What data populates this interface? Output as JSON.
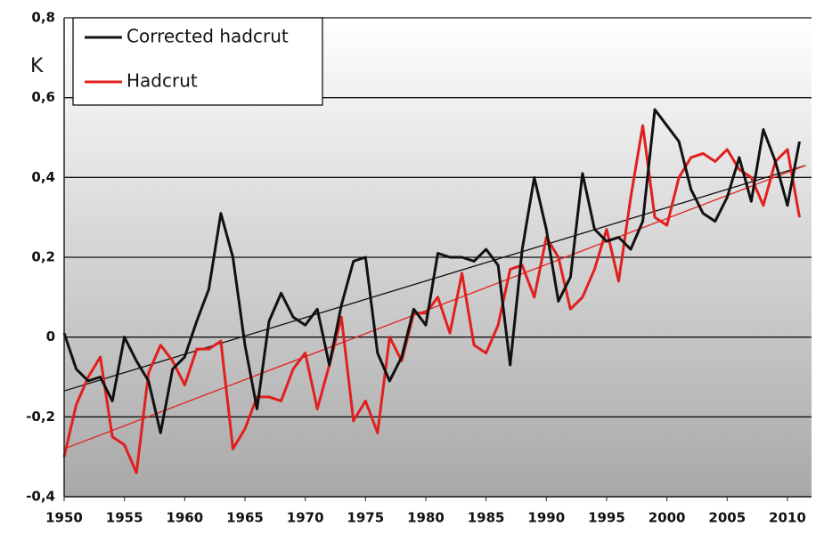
{
  "chart_data": {
    "type": "line",
    "y_label": "K",
    "x": [
      1950,
      1951,
      1952,
      1953,
      1954,
      1955,
      1956,
      1957,
      1958,
      1959,
      1960,
      1961,
      1962,
      1963,
      1964,
      1965,
      1966,
      1967,
      1968,
      1969,
      1970,
      1971,
      1972,
      1973,
      1974,
      1975,
      1976,
      1977,
      1978,
      1979,
      1980,
      1981,
      1982,
      1983,
      1984,
      1985,
      1986,
      1987,
      1988,
      1989,
      1990,
      1991,
      1992,
      1993,
      1994,
      1995,
      1996,
      1997,
      1998,
      1999,
      2000,
      2001,
      2002,
      2003,
      2004,
      2005,
      2006,
      2007,
      2008,
      2009,
      2010,
      2011
    ],
    "series": [
      {
        "name": "Corrected hadcrut",
        "color": "#111111",
        "values": [
          0.01,
          -0.08,
          -0.11,
          -0.1,
          -0.16,
          0.0,
          -0.06,
          -0.11,
          -0.24,
          -0.08,
          -0.05,
          0.04,
          0.12,
          0.31,
          0.2,
          -0.02,
          -0.18,
          0.04,
          0.11,
          0.05,
          0.03,
          0.07,
          -0.07,
          0.08,
          0.19,
          0.2,
          -0.04,
          -0.11,
          -0.05,
          0.07,
          0.03,
          0.21,
          0.2,
          0.2,
          0.19,
          0.22,
          0.18,
          -0.07,
          0.22,
          0.4,
          0.27,
          0.09,
          0.15,
          0.41,
          0.27,
          0.24,
          0.25,
          0.22,
          0.29,
          0.57,
          0.53,
          0.49,
          0.37,
          0.31,
          0.29,
          0.35,
          0.45,
          0.34,
          0.52,
          0.44,
          0.33,
          0.49
        ]
      },
      {
        "name": "Hadcrut",
        "color": "#e0201e",
        "values": [
          -0.3,
          -0.17,
          -0.1,
          -0.05,
          -0.25,
          -0.27,
          -0.34,
          -0.09,
          -0.02,
          -0.06,
          -0.12,
          -0.03,
          -0.03,
          -0.01,
          -0.28,
          -0.23,
          -0.15,
          -0.15,
          -0.16,
          -0.08,
          -0.04,
          -0.18,
          -0.07,
          0.05,
          -0.21,
          -0.16,
          -0.24,
          0.0,
          -0.06,
          0.06,
          0.06,
          0.1,
          0.01,
          0.16,
          -0.02,
          -0.04,
          0.03,
          0.17,
          0.18,
          0.1,
          0.25,
          0.2,
          0.07,
          0.1,
          0.17,
          0.27,
          0.14,
          0.35,
          0.53,
          0.3,
          0.28,
          0.4,
          0.45,
          0.46,
          0.44,
          0.47,
          0.42,
          0.4,
          0.33,
          0.44,
          0.47,
          0.3
        ]
      }
    ],
    "trend_lines": [
      {
        "color": "#111111",
        "x": [
          1950,
          2011.5
        ],
        "values": [
          -0.135,
          0.43
        ]
      },
      {
        "color": "#e0201e",
        "x": [
          1950,
          2011.5
        ],
        "values": [
          -0.28,
          0.43
        ]
      }
    ],
    "xlim": [
      1950,
      2012
    ],
    "ylim": [
      -0.4,
      0.8
    ],
    "xticks": [
      1950,
      1955,
      1960,
      1965,
      1970,
      1975,
      1980,
      1985,
      1990,
      1995,
      2000,
      2005,
      2010
    ],
    "yticks": [
      {
        "value": -0.4,
        "label": "-0,4"
      },
      {
        "value": -0.2,
        "label": "-0,2"
      },
      0,
      {
        "value": 0.2,
        "label": "0,2"
      },
      {
        "value": 0.4,
        "label": "0,4"
      },
      {
        "value": 0.6,
        "label": "0,6"
      },
      {
        "value": 0.8,
        "label": "0,8"
      }
    ],
    "grid": true,
    "legend": "upper left"
  }
}
